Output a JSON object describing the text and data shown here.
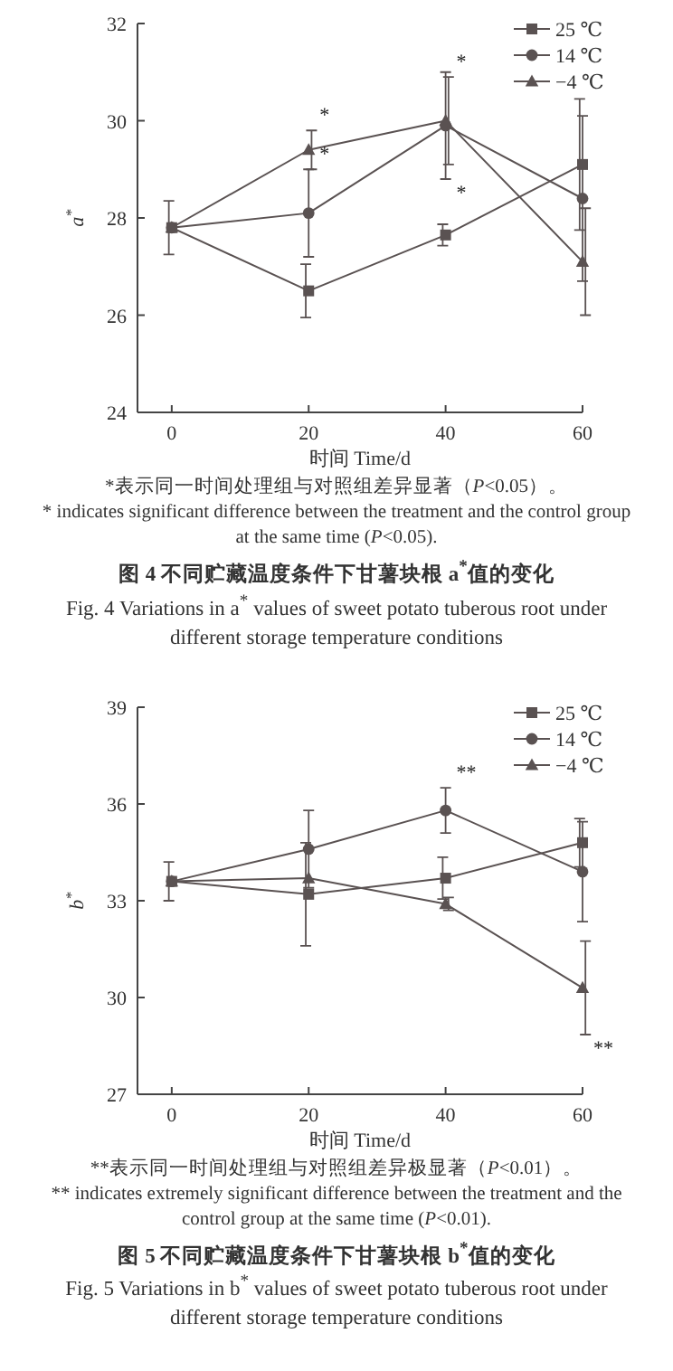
{
  "chart_data": [
    {
      "type": "line",
      "title": "图 4   不同贮藏温度条件下甘薯块根 a$^{*}$值的变化",
      "subtitle": "Fig. 4    Variations in a$^{*}$ values of sweet potato tuberous root under different storage temperature conditions",
      "xlabel": "时间 Time/d",
      "ylabel": "a$^{*}$",
      "x": [
        0,
        20,
        40,
        60
      ],
      "xlim": [
        -5,
        60
      ],
      "xticks": [
        0,
        20,
        40,
        60
      ],
      "ylim": [
        24,
        32
      ],
      "yticks": [
        24,
        26,
        28,
        30,
        32
      ],
      "legend": "top right",
      "series": [
        {
          "name": "25 ℃",
          "color": "#5a5252",
          "marker": "square",
          "values": [
            27.8,
            26.5,
            27.65,
            29.1
          ],
          "errors": [
            0.55,
            0.55,
            0.22,
            1.35
          ]
        },
        {
          "name": "14 ℃",
          "color": "#5a5252",
          "marker": "circle",
          "values": [
            27.8,
            28.1,
            29.9,
            28.4
          ],
          "errors": [
            null,
            0.9,
            1.1,
            1.7
          ]
        },
        {
          "name": "−4 ℃",
          "color": "#5a5252",
          "marker": "triangle",
          "values": [
            27.8,
            29.4,
            30.0,
            27.1
          ],
          "errors": [
            null,
            0.4,
            0.9,
            1.1
          ]
        }
      ],
      "annotations": [
        {
          "text": "*",
          "x": 20,
          "y": 29.8
        },
        {
          "text": "*",
          "x": 20,
          "y": 29.0
        },
        {
          "text": "*",
          "x": 40,
          "y": 30.9
        },
        {
          "text": "*",
          "x": 40,
          "y": 28.8
        },
        "*表示同一时间处理组与对照组差异显著（P<0.05）。",
        "* indicates significant difference between the treatment and the control group at the same time (P<0.05)."
      ]
    },
    {
      "type": "line",
      "title": "图 5   不同贮藏温度条件下甘薯块根 b$^{*}$值的变化",
      "subtitle": "Fig. 5    Variations in b$^{*}$ values of sweet potato tuberous root under different storage temperature conditions",
      "xlabel": "时间 Time/d",
      "ylabel": "b$^{*}$",
      "x": [
        0,
        20,
        40,
        60
      ],
      "xlim": [
        -5,
        60
      ],
      "xticks": [
        0,
        20,
        40,
        60
      ],
      "ylim": [
        27,
        39
      ],
      "yticks": [
        27,
        30,
        33,
        36,
        39
      ],
      "legend": "top right",
      "series": [
        {
          "name": "25 ℃",
          "color": "#5a5252",
          "marker": "square",
          "values": [
            33.6,
            33.2,
            33.7,
            34.8
          ],
          "errors": [
            0.6,
            1.6,
            0.65,
            0.75
          ]
        },
        {
          "name": "14 ℃",
          "color": "#5a5252",
          "marker": "circle",
          "values": [
            33.6,
            34.6,
            35.8,
            33.9
          ],
          "errors": [
            null,
            1.2,
            0.7,
            1.55
          ]
        },
        {
          "name": "−4 ℃",
          "color": "#5a5252",
          "marker": "triangle",
          "values": [
            33.6,
            33.7,
            32.9,
            30.3
          ],
          "errors": [
            null,
            null,
            0.2,
            1.45
          ]
        }
      ],
      "annotations": [
        {
          "text": "**",
          "x": 40,
          "y": 36.5
        },
        {
          "text": "**",
          "x": 60,
          "y": 28.85
        },
        "**表示同一时间处理组与对照组差异极显著（P<0.01）。",
        "** indicates extremely significant difference between the treatment and the control group at the same time (P<0.01)."
      ]
    }
  ]
}
